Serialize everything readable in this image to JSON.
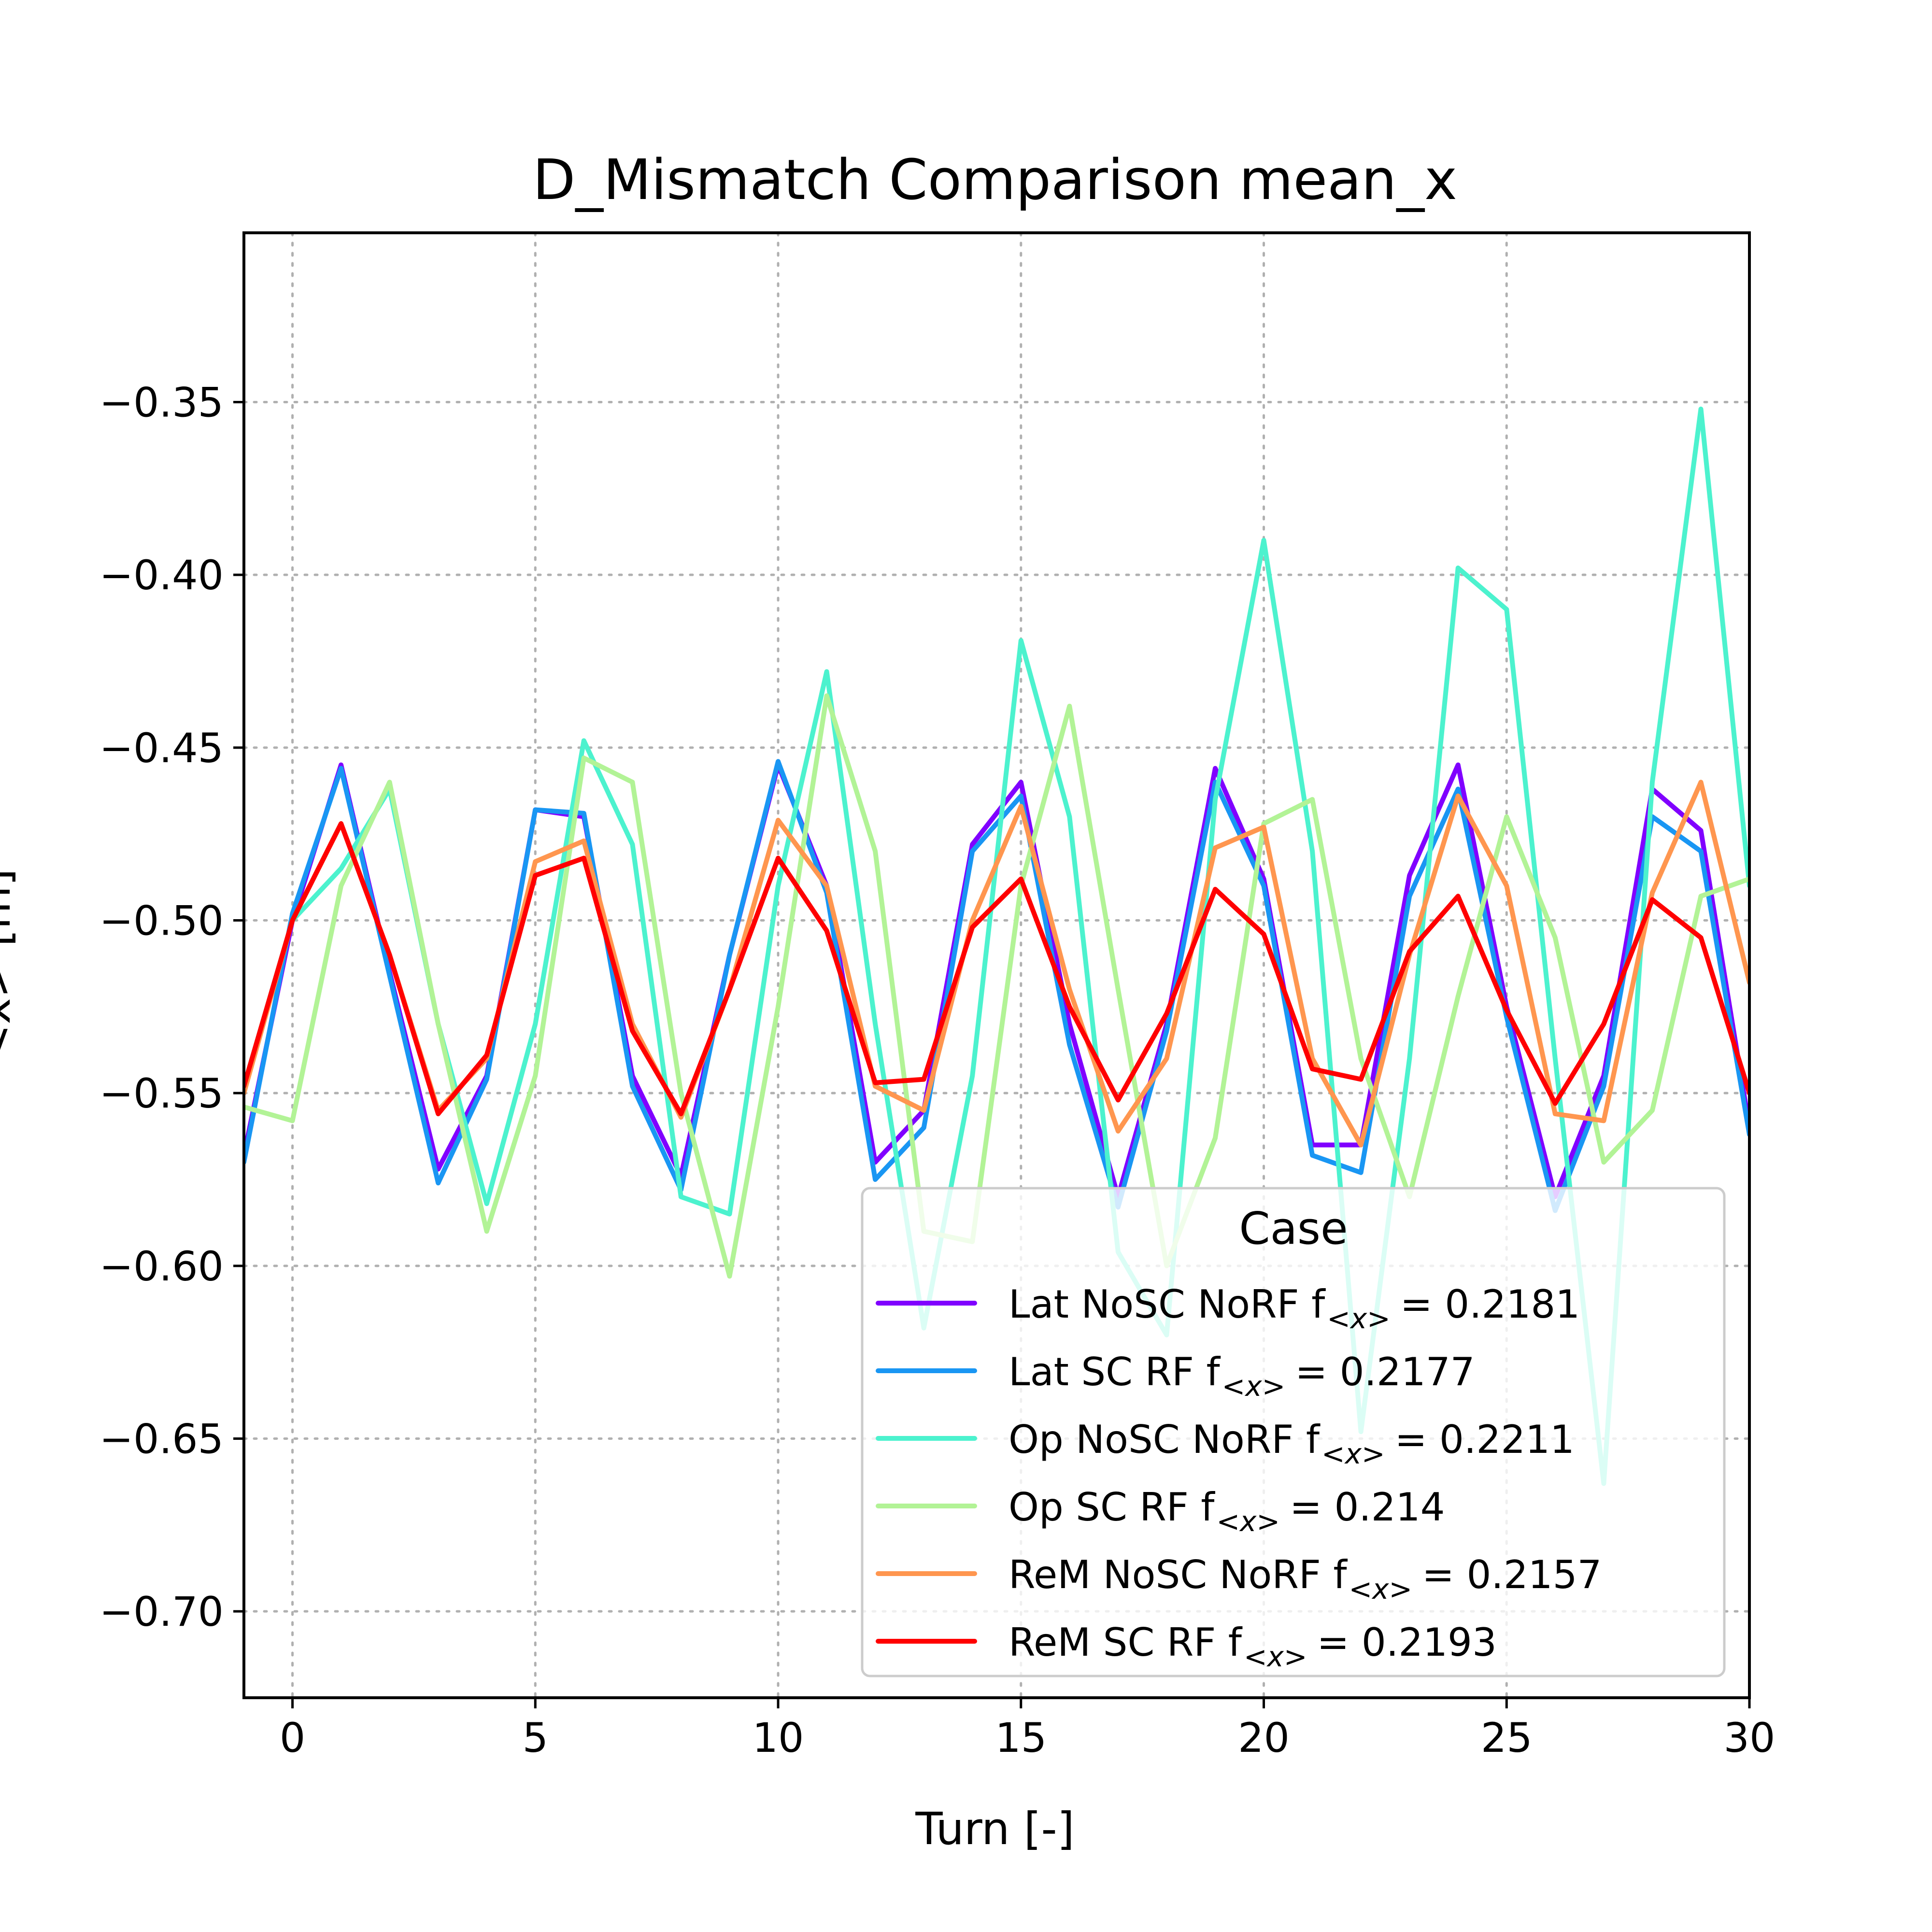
{
  "chart_data": {
    "type": "line",
    "title": "D_Mismatch Comparison mean_x",
    "xlabel": "Turn [-]",
    "ylabel": "<x> [m]",
    "xlim": [
      -1,
      30
    ],
    "ylim": [
      -0.725,
      -0.301
    ],
    "xticks": [
      0,
      5,
      10,
      15,
      20,
      25,
      30
    ],
    "yticks": [
      -0.35,
      -0.4,
      -0.45,
      -0.5,
      -0.55,
      -0.6,
      -0.65,
      -0.7
    ],
    "xtick_labels": [
      "0",
      "5",
      "10",
      "15",
      "20",
      "25",
      "30"
    ],
    "ytick_labels": [
      "−0.35",
      "−0.40",
      "−0.45",
      "−0.50",
      "−0.55",
      "−0.60",
      "−0.65",
      "−0.70"
    ],
    "grid": true,
    "legend": {
      "title": "Case",
      "placement": "lower-right",
      "sub": "<x>",
      "eq": "="
    },
    "x": [
      -1,
      0,
      1,
      2,
      3,
      4,
      5,
      6,
      7,
      8,
      9,
      10,
      11,
      12,
      13,
      14,
      15,
      16,
      17,
      18,
      19,
      20,
      21,
      22,
      23,
      24,
      25,
      26,
      27,
      28,
      29,
      30
    ],
    "series": [
      {
        "name": "Lat NoSC NoRF f",
        "fvalue": "0.2181",
        "color": "#8000ff",
        "values": [
          -0.568,
          -0.5,
          -0.455,
          -0.515,
          -0.572,
          -0.545,
          -0.468,
          -0.47,
          -0.545,
          -0.574,
          -0.51,
          -0.455,
          -0.49,
          -0.57,
          -0.555,
          -0.478,
          -0.46,
          -0.53,
          -0.58,
          -0.53,
          -0.456,
          -0.488,
          -0.565,
          -0.565,
          -0.487,
          -0.455,
          -0.525,
          -0.58,
          -0.545,
          -0.462,
          -0.474,
          -0.56
        ]
      },
      {
        "name": "Lat SC RF f",
        "fvalue": "0.2177",
        "color": "#1996f3",
        "values": [
          -0.57,
          -0.498,
          -0.456,
          -0.516,
          -0.576,
          -0.546,
          -0.468,
          -0.469,
          -0.548,
          -0.578,
          -0.51,
          -0.454,
          -0.492,
          -0.575,
          -0.56,
          -0.48,
          -0.464,
          -0.536,
          -0.583,
          -0.532,
          -0.46,
          -0.49,
          -0.568,
          -0.573,
          -0.493,
          -0.462,
          -0.528,
          -0.584,
          -0.548,
          -0.47,
          -0.48,
          -0.562
        ]
      },
      {
        "name": "Op NoSC NoRF f",
        "fvalue": "0.2211",
        "color": "#4cf2ce",
        "values": [
          -0.548,
          -0.5,
          -0.485,
          -0.462,
          -0.53,
          -0.582,
          -0.53,
          -0.448,
          -0.478,
          -0.58,
          -0.585,
          -0.49,
          -0.428,
          -0.53,
          -0.618,
          -0.545,
          -0.419,
          -0.47,
          -0.596,
          -0.62,
          -0.465,
          -0.39,
          -0.48,
          -0.648,
          -0.54,
          -0.398,
          -0.41,
          -0.54,
          -0.663,
          -0.46,
          -0.352,
          -0.49
        ]
      },
      {
        "name": "Op SC RF f",
        "fvalue": "0.214",
        "color": "#b2f396",
        "values": [
          -0.554,
          -0.558,
          -0.49,
          -0.46,
          -0.53,
          -0.59,
          -0.545,
          -0.453,
          -0.46,
          -0.55,
          -0.603,
          -0.525,
          -0.435,
          -0.48,
          -0.59,
          -0.593,
          -0.49,
          -0.438,
          -0.52,
          -0.6,
          -0.563,
          -0.472,
          -0.465,
          -0.54,
          -0.58,
          -0.522,
          -0.47,
          -0.505,
          -0.57,
          -0.555,
          -0.493,
          -0.488
        ]
      },
      {
        "name": "ReM NoSC NoRF f",
        "fvalue": "0.2157",
        "color": "#ff964f",
        "values": [
          -0.55,
          -0.5,
          -0.472,
          -0.51,
          -0.555,
          -0.54,
          -0.483,
          -0.477,
          -0.53,
          -0.557,
          -0.52,
          -0.471,
          -0.49,
          -0.548,
          -0.555,
          -0.5,
          -0.467,
          -0.52,
          -0.561,
          -0.54,
          -0.479,
          -0.473,
          -0.54,
          -0.565,
          -0.51,
          -0.464,
          -0.49,
          -0.556,
          -0.558,
          -0.492,
          -0.46,
          -0.518
        ]
      },
      {
        "name": "ReM SC RF f",
        "fvalue": "0.2193",
        "color": "#ff0000",
        "values": [
          -0.548,
          -0.5,
          -0.472,
          -0.51,
          -0.556,
          -0.539,
          -0.487,
          -0.482,
          -0.532,
          -0.556,
          -0.52,
          -0.482,
          -0.503,
          -0.547,
          -0.546,
          -0.502,
          -0.488,
          -0.525,
          -0.552,
          -0.527,
          -0.491,
          -0.504,
          -0.543,
          -0.546,
          -0.509,
          -0.493,
          -0.526,
          -0.553,
          -0.53,
          -0.494,
          -0.505,
          -0.55
        ]
      }
    ]
  }
}
